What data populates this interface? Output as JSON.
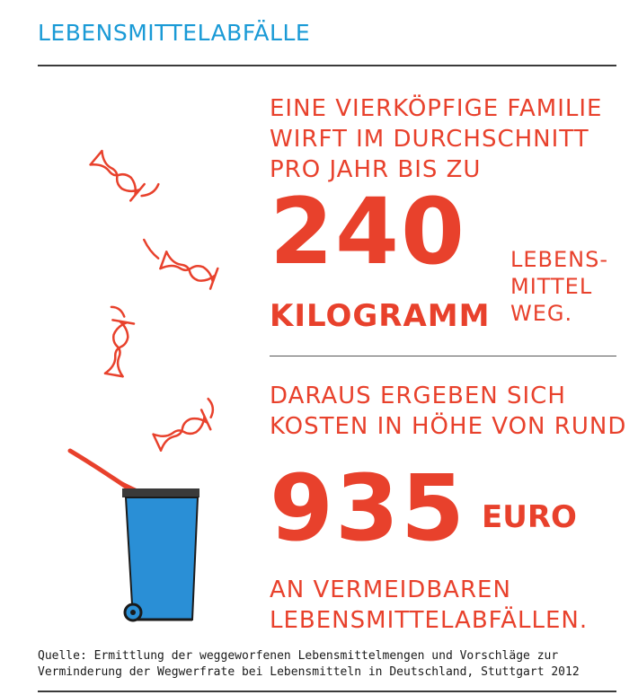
{
  "header": {
    "title": "LEBENSMITTELABFÄLLE"
  },
  "facts": {
    "intro": [
      "EINE VIERKÖPFIGE FAMILIE",
      "WIRFT IM DURCHSCHNITT",
      "PRO JAHR BIS ZU"
    ],
    "amount_value": "240",
    "amount_unit": "KILOGRAMM",
    "amount_suffix": [
      "LEBENS-",
      "MITTEL",
      "WEG."
    ],
    "cost_intro": [
      "DARAUS ERGEBEN SICH",
      "KOSTEN IN HÖHE VON RUND"
    ],
    "cost_value": "935",
    "cost_unit": "EURO",
    "cost_outro": [
      "AN VERMEIDBAREN",
      "LEBENSMITTELABFÄLLEN."
    ]
  },
  "source": [
    "Quelle: Ermittlung der weggeworfenen Lebensmittelmengen und Vorschläge zur",
    "Verminderung der Wegwerfrate bei Lebensmitteln in Deutschland, Stuttgart 2012"
  ],
  "colors": {
    "accent_orange": "#e8412c",
    "title_blue": "#1a9ad6",
    "bin_blue": "#2a8fd6"
  },
  "icons": [
    "apple-core-icon",
    "trash-bin-icon"
  ]
}
